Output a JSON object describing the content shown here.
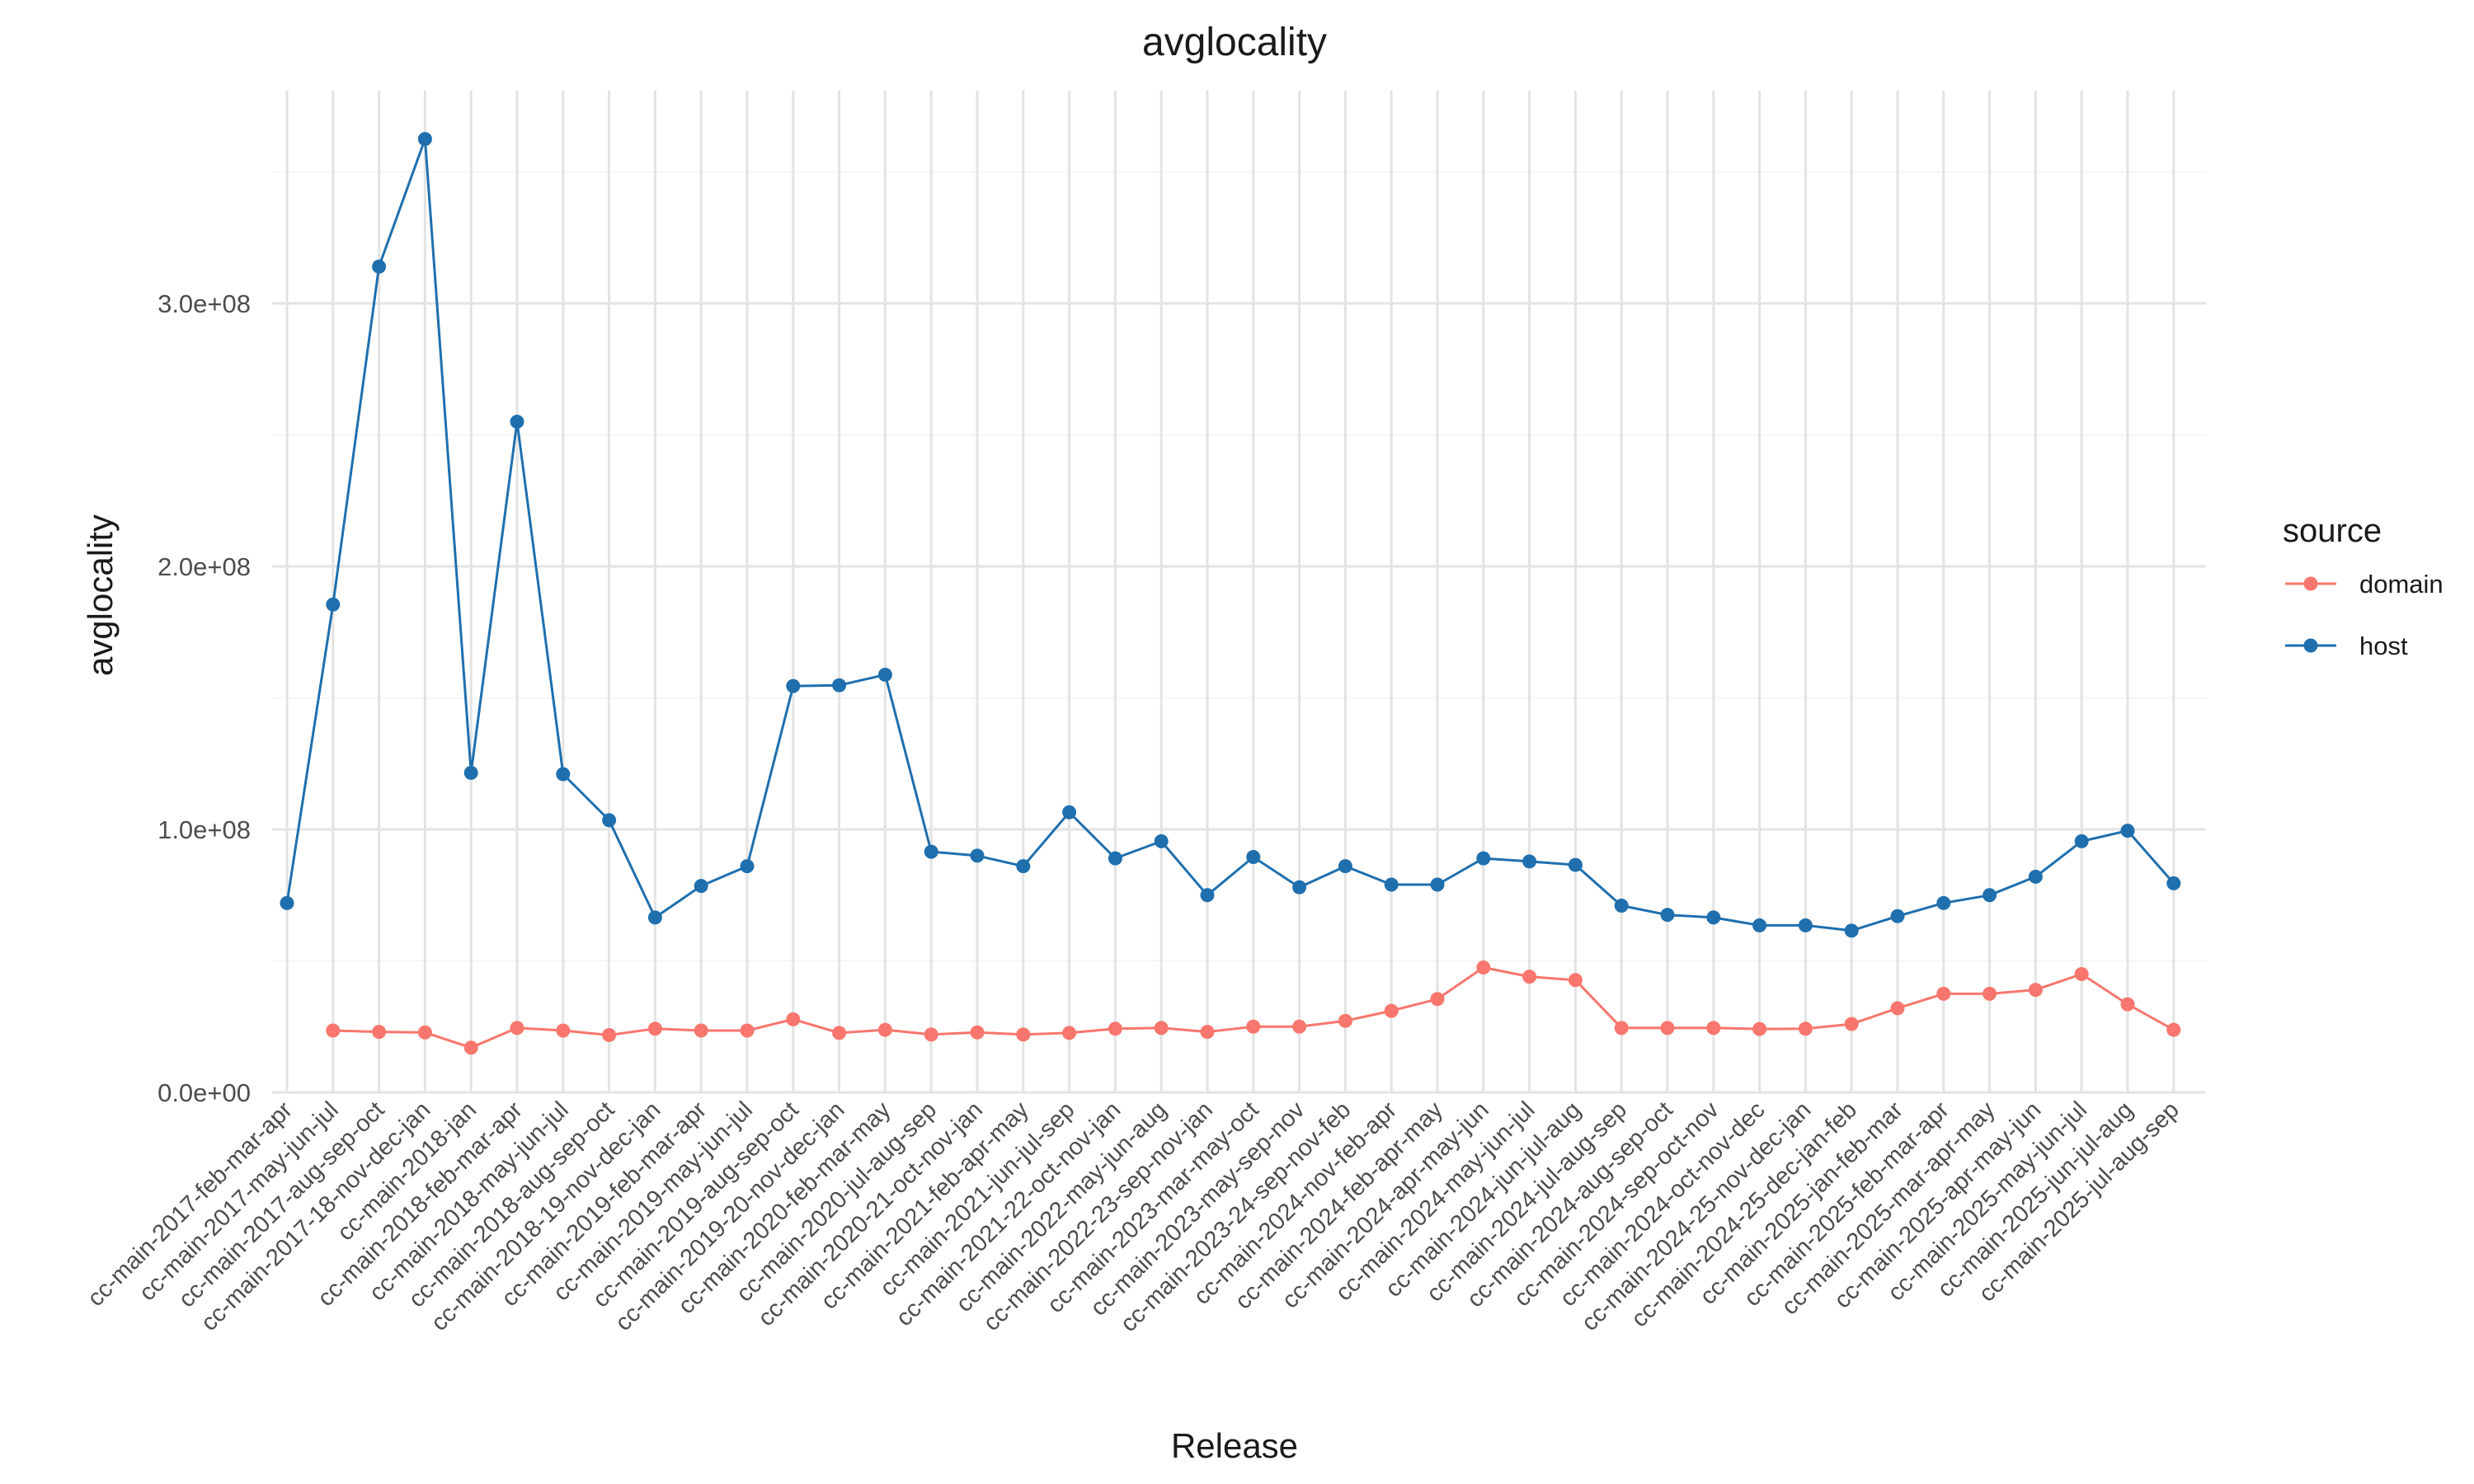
{
  "chart_data": {
    "type": "line",
    "title": "avglocality",
    "xlabel": "Release",
    "ylabel": "avglocality",
    "ylim": [
      0,
      365000000
    ],
    "yticks": [
      0,
      100000000,
      200000000,
      300000000
    ],
    "ytick_labels": [
      "0.0e+00",
      "1.0e+08",
      "2.0e+08",
      "3.0e+08"
    ],
    "grid": true,
    "legend": {
      "title": "source",
      "position": "right"
    },
    "categories": [
      "cc-main-2017-feb-mar-apr",
      "cc-main-2017-may-jun-jul",
      "cc-main-2017-aug-sep-oct",
      "cc-main-2017-18-nov-dec-jan",
      "cc-main-2018-jan",
      "cc-main-2018-feb-mar-apr",
      "cc-main-2018-may-jun-jul",
      "cc-main-2018-aug-sep-oct",
      "cc-main-2018-19-nov-dec-jan",
      "cc-main-2019-feb-mar-apr",
      "cc-main-2019-may-jun-jul",
      "cc-main-2019-aug-sep-oct",
      "cc-main-2019-20-nov-dec-jan",
      "cc-main-2020-feb-mar-may",
      "cc-main-2020-jul-aug-sep",
      "cc-main-2020-21-oct-nov-jan",
      "cc-main-2021-feb-apr-may",
      "cc-main-2021-jun-jul-sep",
      "cc-main-2021-22-oct-nov-jan",
      "cc-main-2022-may-jun-aug",
      "cc-main-2022-23-sep-nov-jan",
      "cc-main-2023-mar-may-oct",
      "cc-main-2023-may-sep-nov",
      "cc-main-2023-24-sep-nov-feb",
      "cc-main-2024-nov-feb-apr",
      "cc-main-2024-feb-apr-may",
      "cc-main-2024-apr-may-jun",
      "cc-main-2024-may-jun-jul",
      "cc-main-2024-jun-jul-aug",
      "cc-main-2024-jul-aug-sep",
      "cc-main-2024-aug-sep-oct",
      "cc-main-2024-sep-oct-nov",
      "cc-main-2024-oct-nov-dec",
      "cc-main-2024-25-nov-dec-jan",
      "cc-main-2024-25-dec-jan-feb",
      "cc-main-2025-jan-feb-mar",
      "cc-main-2025-feb-mar-apr",
      "cc-main-2025-mar-apr-may",
      "cc-main-2025-apr-may-jun",
      "cc-main-2025-may-jun-jul",
      "cc-main-2025-jun-jul-aug",
      "cc-main-2025-jul-aug-sep"
    ],
    "series": [
      {
        "name": "domain",
        "color": "#F8766D",
        "values": [
          null,
          23500000,
          23000000,
          22800000,
          17000000,
          24500000,
          23500000,
          21800000,
          24200000,
          23500000,
          23500000,
          27800000,
          22600000,
          23800000,
          22000000,
          22800000,
          22000000,
          22600000,
          24200000,
          24500000,
          23000000,
          25000000,
          25000000,
          27200000,
          31000000,
          35500000,
          47500000,
          44000000,
          42700000,
          24500000,
          24500000,
          24500000,
          24100000,
          24200000,
          26000000,
          32000000,
          37500000,
          37500000,
          39000000,
          45000000,
          33500000,
          23800000
        ]
      },
      {
        "name": "host",
        "color": "#1F6FAE",
        "values": [
          72000000,
          185500000,
          314000000,
          362500000,
          121500000,
          255000000,
          121000000,
          103500000,
          66500000,
          78500000,
          86000000,
          154500000,
          154800000,
          158800000,
          91500000,
          90000000,
          86000000,
          106500000,
          89000000,
          95500000,
          75000000,
          89500000,
          78000000,
          86000000,
          79000000,
          79000000,
          89000000,
          87800000,
          86500000,
          71000000,
          67500000,
          66500000,
          63500000,
          63500000,
          61500000,
          67000000,
          72000000,
          75000000,
          82000000,
          95500000,
          99500000,
          79500000
        ]
      }
    ]
  }
}
